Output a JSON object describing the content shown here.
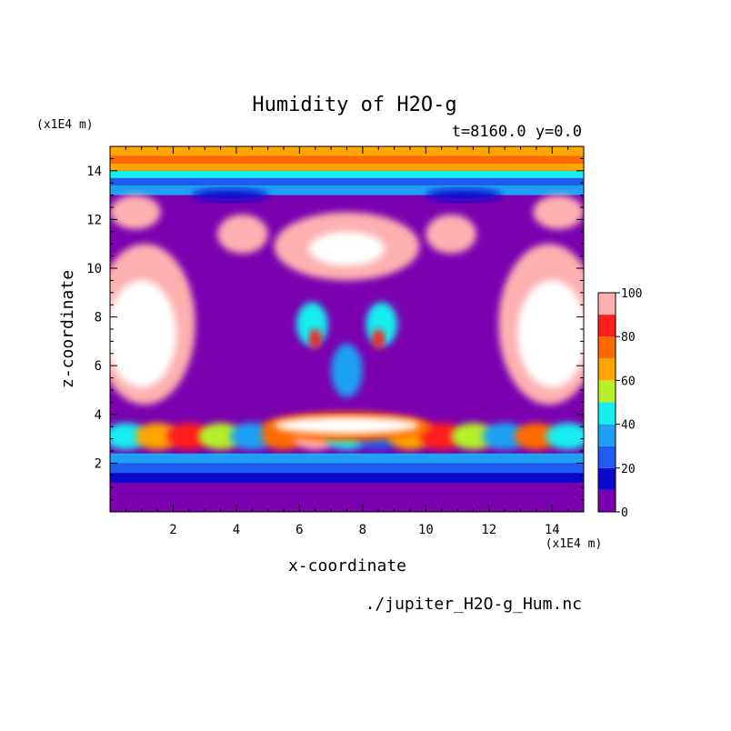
{
  "chart_data": {
    "type": "heatmap",
    "title": "Humidity of H2O-g",
    "subtitle": "t=8160.0 y=0.0",
    "xlabel": "x-coordinate",
    "ylabel": "z-coordinate",
    "x_unit": "(x1E4 m)",
    "y_unit": "(x1E4 m)",
    "filename": "./jupiter_H2O-g_Hum.nc",
    "xlim": [
      0,
      15
    ],
    "ylim": [
      0,
      15
    ],
    "x_ticks": [
      2,
      4,
      6,
      8,
      10,
      12,
      14
    ],
    "y_ticks": [
      2,
      4,
      6,
      8,
      10,
      12,
      14
    ],
    "x_tick_labels": [
      "2",
      "4",
      "6",
      "8",
      "10",
      "12",
      "14"
    ],
    "y_tick_labels": [
      "2",
      "4",
      "6",
      "8",
      "10",
      "12",
      "14"
    ],
    "colorbar": {
      "levels": [
        0,
        10,
        20,
        30,
        40,
        50,
        60,
        70,
        80,
        90,
        100
      ],
      "labels": [
        "0",
        "20",
        "40",
        "60",
        "80",
        "100"
      ],
      "label_values": [
        0,
        20,
        40,
        60,
        80,
        100
      ],
      "colors": [
        "#7a00b0",
        "#0a0acd",
        "#1f5cf0",
        "#1fa0f5",
        "#17eef0",
        "#b5f02a",
        "#ffa500",
        "#ff6a00",
        "#ff1e1e",
        "#ffb0b0"
      ],
      "above_color": "#ffffff"
    },
    "field": {
      "x_range": [
        0,
        15
      ],
      "z_range": [
        0,
        15
      ],
      "background_levels": [
        {
          "z": [
            0,
            1.2
          ],
          "value": 5
        },
        {
          "z": [
            1.2,
            1.6
          ],
          "value": 15
        },
        {
          "z": [
            1.6,
            2.0
          ],
          "value": 25
        },
        {
          "z": [
            2.0,
            2.4
          ],
          "value": 35
        },
        {
          "z": [
            13.0,
            13.4
          ],
          "value": 35
        },
        {
          "z": [
            13.4,
            13.7
          ],
          "value": 25
        },
        {
          "z": [
            13.7,
            14.0
          ],
          "value": 45
        },
        {
          "z": [
            14.0,
            14.3
          ],
          "value": 65
        },
        {
          "z": [
            14.3,
            14.6
          ],
          "value": 75
        },
        {
          "z": [
            14.6,
            15
          ],
          "value": 65
        }
      ]
    }
  }
}
